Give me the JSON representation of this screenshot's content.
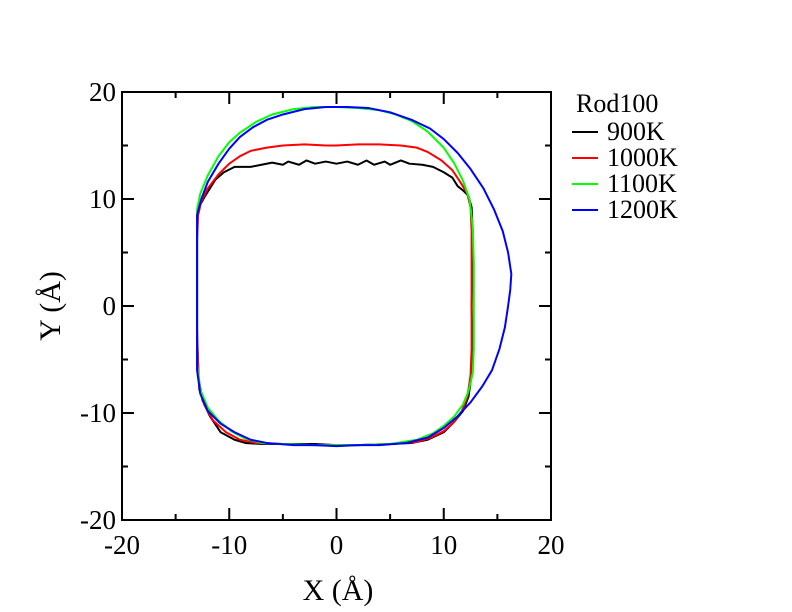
{
  "chart_data": {
    "type": "line",
    "title": "",
    "xlabel": "X (Å)",
    "ylabel": "Y (Å)",
    "xlim": [
      -20,
      20
    ],
    "ylim": [
      -20,
      20
    ],
    "xticks": [
      -20,
      -10,
      0,
      10,
      20
    ],
    "yticks": [
      -20,
      -10,
      0,
      10,
      20
    ],
    "grid": false,
    "legend_title": "Rod100",
    "legend_position": "right",
    "series": [
      {
        "name": "900K",
        "color": "#000000",
        "points": [
          [
            -12.9,
            -5.5
          ],
          [
            -13.0,
            -3
          ],
          [
            -13.0,
            0
          ],
          [
            -13.0,
            4
          ],
          [
            -13.0,
            8
          ],
          [
            -12.8,
            9.3
          ],
          [
            -12.3,
            10.2
          ],
          [
            -11.8,
            11.0
          ],
          [
            -11.3,
            11.8
          ],
          [
            -10.5,
            12.5
          ],
          [
            -9.5,
            13.0
          ],
          [
            -8.0,
            13.0
          ],
          [
            -7.0,
            13.2
          ],
          [
            -6.0,
            13.4
          ],
          [
            -5.0,
            13.2
          ],
          [
            -4.5,
            13.5
          ],
          [
            -3.5,
            13.2
          ],
          [
            -2.8,
            13.6
          ],
          [
            -2.0,
            13.3
          ],
          [
            -1.0,
            13.5
          ],
          [
            0.0,
            13.3
          ],
          [
            1.0,
            13.5
          ],
          [
            2.0,
            13.2
          ],
          [
            2.8,
            13.6
          ],
          [
            3.5,
            13.2
          ],
          [
            4.5,
            13.5
          ],
          [
            5.0,
            13.2
          ],
          [
            6.0,
            13.6
          ],
          [
            6.8,
            13.3
          ],
          [
            8.0,
            13.2
          ],
          [
            9.0,
            13.0
          ],
          [
            10.0,
            12.5
          ],
          [
            10.8,
            12.0
          ],
          [
            11.3,
            11.2
          ],
          [
            11.8,
            10.8
          ],
          [
            12.3,
            10.3
          ],
          [
            12.6,
            9.2
          ],
          [
            12.7,
            7
          ],
          [
            12.7,
            4
          ],
          [
            12.6,
            0
          ],
          [
            12.7,
            -4
          ],
          [
            12.6,
            -6.5
          ],
          [
            12.3,
            -8.5
          ],
          [
            11.8,
            -9.8
          ],
          [
            11.0,
            -10.8
          ],
          [
            10.0,
            -11.8
          ],
          [
            8.5,
            -12.5
          ],
          [
            7.0,
            -12.8
          ],
          [
            5.0,
            -12.9
          ],
          [
            2.0,
            -13.0
          ],
          [
            0.0,
            -13.0
          ],
          [
            -2.0,
            -12.9
          ],
          [
            -5.0,
            -12.9
          ],
          [
            -7.0,
            -12.9
          ],
          [
            -8.5,
            -12.8
          ],
          [
            -9.5,
            -12.5
          ],
          [
            -10.8,
            -11.8
          ],
          [
            -11.8,
            -10.3
          ],
          [
            -12.5,
            -8.8
          ],
          [
            -12.9,
            -6.5
          ],
          [
            -12.9,
            -5.5
          ]
        ]
      },
      {
        "name": "1000K",
        "color": "#ff0000",
        "points": [
          [
            -12.9,
            -5.5
          ],
          [
            -13.0,
            -2
          ],
          [
            -13.0,
            2
          ],
          [
            -13.0,
            6
          ],
          [
            -12.9,
            8.5
          ],
          [
            -12.6,
            9.8
          ],
          [
            -12.0,
            11.0
          ],
          [
            -11.0,
            12.3
          ],
          [
            -10.0,
            13.3
          ],
          [
            -9.0,
            14.0
          ],
          [
            -8.0,
            14.5
          ],
          [
            -6.5,
            14.8
          ],
          [
            -5.0,
            15.0
          ],
          [
            -3.0,
            15.1
          ],
          [
            -1.0,
            15.0
          ],
          [
            0.0,
            15.0
          ],
          [
            2.0,
            15.1
          ],
          [
            4.0,
            15.1
          ],
          [
            6.0,
            15.0
          ],
          [
            7.5,
            14.8
          ],
          [
            8.5,
            14.4
          ],
          [
            9.8,
            13.6
          ],
          [
            10.8,
            12.7
          ],
          [
            11.6,
            11.5
          ],
          [
            12.2,
            10.5
          ],
          [
            12.5,
            9.2
          ],
          [
            12.6,
            7
          ],
          [
            12.6,
            3
          ],
          [
            12.6,
            0
          ],
          [
            12.6,
            -4
          ],
          [
            12.5,
            -6.5
          ],
          [
            12.2,
            -8.5
          ],
          [
            11.7,
            -9.8
          ],
          [
            10.9,
            -10.9
          ],
          [
            10.0,
            -11.7
          ],
          [
            8.8,
            -12.3
          ],
          [
            7.5,
            -12.7
          ],
          [
            5.0,
            -12.9
          ],
          [
            2.0,
            -13.0
          ],
          [
            -2.0,
            -13.0
          ],
          [
            -5.0,
            -12.9
          ],
          [
            -7.5,
            -12.8
          ],
          [
            -9.0,
            -12.5
          ],
          [
            -10.3,
            -11.8
          ],
          [
            -11.5,
            -10.7
          ],
          [
            -12.3,
            -9.3
          ],
          [
            -12.8,
            -7.8
          ],
          [
            -12.9,
            -5.5
          ]
        ]
      },
      {
        "name": "1100K",
        "color": "#00ff00",
        "points": [
          [
            -13.0,
            -5.5
          ],
          [
            -13.0,
            -2
          ],
          [
            -13.0,
            2
          ],
          [
            -13.0,
            6
          ],
          [
            -13.0,
            9.0
          ],
          [
            -12.7,
            10.5
          ],
          [
            -12.0,
            12.2
          ],
          [
            -11.0,
            14.0
          ],
          [
            -10.0,
            15.3
          ],
          [
            -9.0,
            16.2
          ],
          [
            -7.5,
            17.2
          ],
          [
            -6.0,
            17.9
          ],
          [
            -4.0,
            18.4
          ],
          [
            -2.0,
            18.6
          ],
          [
            0.0,
            18.6
          ],
          [
            2.0,
            18.5
          ],
          [
            4.0,
            18.3
          ],
          [
            5.5,
            17.9
          ],
          [
            7.0,
            17.3
          ],
          [
            8.5,
            16.3
          ],
          [
            10.0,
            14.8
          ],
          [
            11.0,
            13.3
          ],
          [
            11.8,
            11.7
          ],
          [
            12.4,
            10.0
          ],
          [
            12.7,
            7.5
          ],
          [
            12.8,
            4
          ],
          [
            12.8,
            0
          ],
          [
            12.8,
            -4
          ],
          [
            12.7,
            -6.3
          ],
          [
            12.3,
            -8.0
          ],
          [
            11.8,
            -9.2
          ],
          [
            11.0,
            -10.3
          ],
          [
            10.0,
            -11.2
          ],
          [
            9.0,
            -11.9
          ],
          [
            7.5,
            -12.5
          ],
          [
            5.0,
            -12.9
          ],
          [
            2.0,
            -13.0
          ],
          [
            -2.0,
            -13.0
          ],
          [
            -5.0,
            -12.9
          ],
          [
            -7.0,
            -12.8
          ],
          [
            -8.5,
            -12.4
          ],
          [
            -9.8,
            -11.7
          ],
          [
            -11.0,
            -10.7
          ],
          [
            -12.0,
            -9.5
          ],
          [
            -12.7,
            -7.8
          ],
          [
            -13.0,
            -5.5
          ]
        ]
      },
      {
        "name": "1200K",
        "color": "#0000ff",
        "points": [
          [
            -13.0,
            -6
          ],
          [
            -13.0,
            -2
          ],
          [
            -13.0,
            2
          ],
          [
            -13.0,
            6
          ],
          [
            -13.0,
            8.5
          ],
          [
            -12.6,
            10.0
          ],
          [
            -12.0,
            11.6
          ],
          [
            -11.0,
            13.3
          ],
          [
            -10.0,
            14.7
          ],
          [
            -9.0,
            15.8
          ],
          [
            -7.8,
            16.7
          ],
          [
            -6.5,
            17.4
          ],
          [
            -5.0,
            17.9
          ],
          [
            -3.0,
            18.4
          ],
          [
            -1.0,
            18.6
          ],
          [
            1.0,
            18.6
          ],
          [
            3.0,
            18.5
          ],
          [
            5.0,
            18.1
          ],
          [
            7.0,
            17.4
          ],
          [
            8.7,
            16.6
          ],
          [
            10.0,
            15.6
          ],
          [
            11.3,
            14.3
          ],
          [
            12.5,
            12.8
          ],
          [
            13.7,
            11.0
          ],
          [
            14.7,
            9.0
          ],
          [
            15.5,
            7.0
          ],
          [
            16.0,
            5.0
          ],
          [
            16.3,
            3.0
          ],
          [
            16.2,
            1.5
          ],
          [
            16.0,
            0
          ],
          [
            15.7,
            -2.0
          ],
          [
            15.2,
            -4.0
          ],
          [
            14.5,
            -6.0
          ],
          [
            13.6,
            -7.5
          ],
          [
            12.5,
            -9.0
          ],
          [
            11.3,
            -10.3
          ],
          [
            10.0,
            -11.4
          ],
          [
            8.5,
            -12.3
          ],
          [
            6.5,
            -12.8
          ],
          [
            4.0,
            -13.0
          ],
          [
            2.0,
            -13.0
          ],
          [
            0.0,
            -13.1
          ],
          [
            -2.0,
            -13.0
          ],
          [
            -4.0,
            -13.0
          ],
          [
            -6.5,
            -12.8
          ],
          [
            -8.0,
            -12.5
          ],
          [
            -9.5,
            -11.8
          ],
          [
            -10.8,
            -11.0
          ],
          [
            -12.0,
            -9.8
          ],
          [
            -12.7,
            -8.2
          ],
          [
            -13.0,
            -6.0
          ]
        ]
      }
    ]
  }
}
